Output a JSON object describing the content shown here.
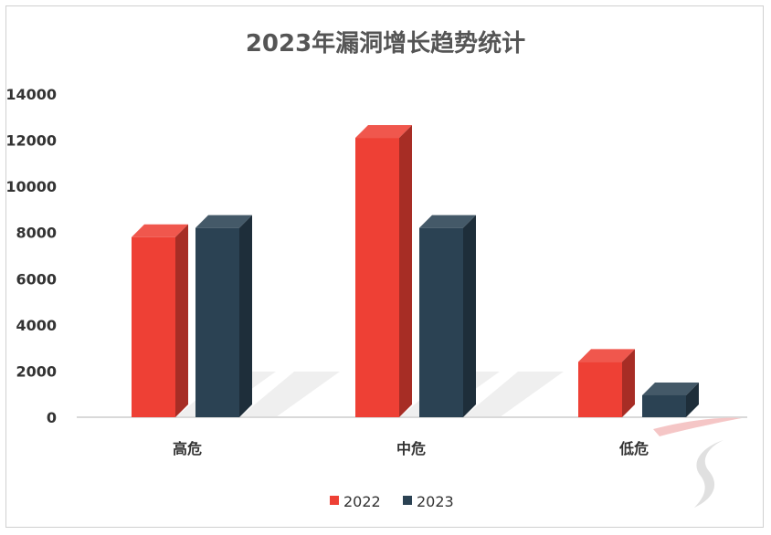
{
  "chart_data": {
    "type": "bar",
    "title": "2023年漏洞增长趋势统计",
    "categories": [
      "高危",
      "中危",
      "低危"
    ],
    "series": [
      {
        "name": "2022",
        "values": [
          7800,
          12100,
          2400
        ],
        "color": "#ee4035"
      },
      {
        "name": "2023",
        "values": [
          8200,
          8200,
          950
        ],
        "color": "#2b4253"
      }
    ],
    "yticks": [
      "0",
      "2000",
      "4000",
      "6000",
      "8000",
      "10000",
      "12000",
      "14000"
    ],
    "ylim": [
      0,
      14000
    ],
    "grid": false,
    "legend_position": "bottom",
    "bar_style": "3d"
  }
}
